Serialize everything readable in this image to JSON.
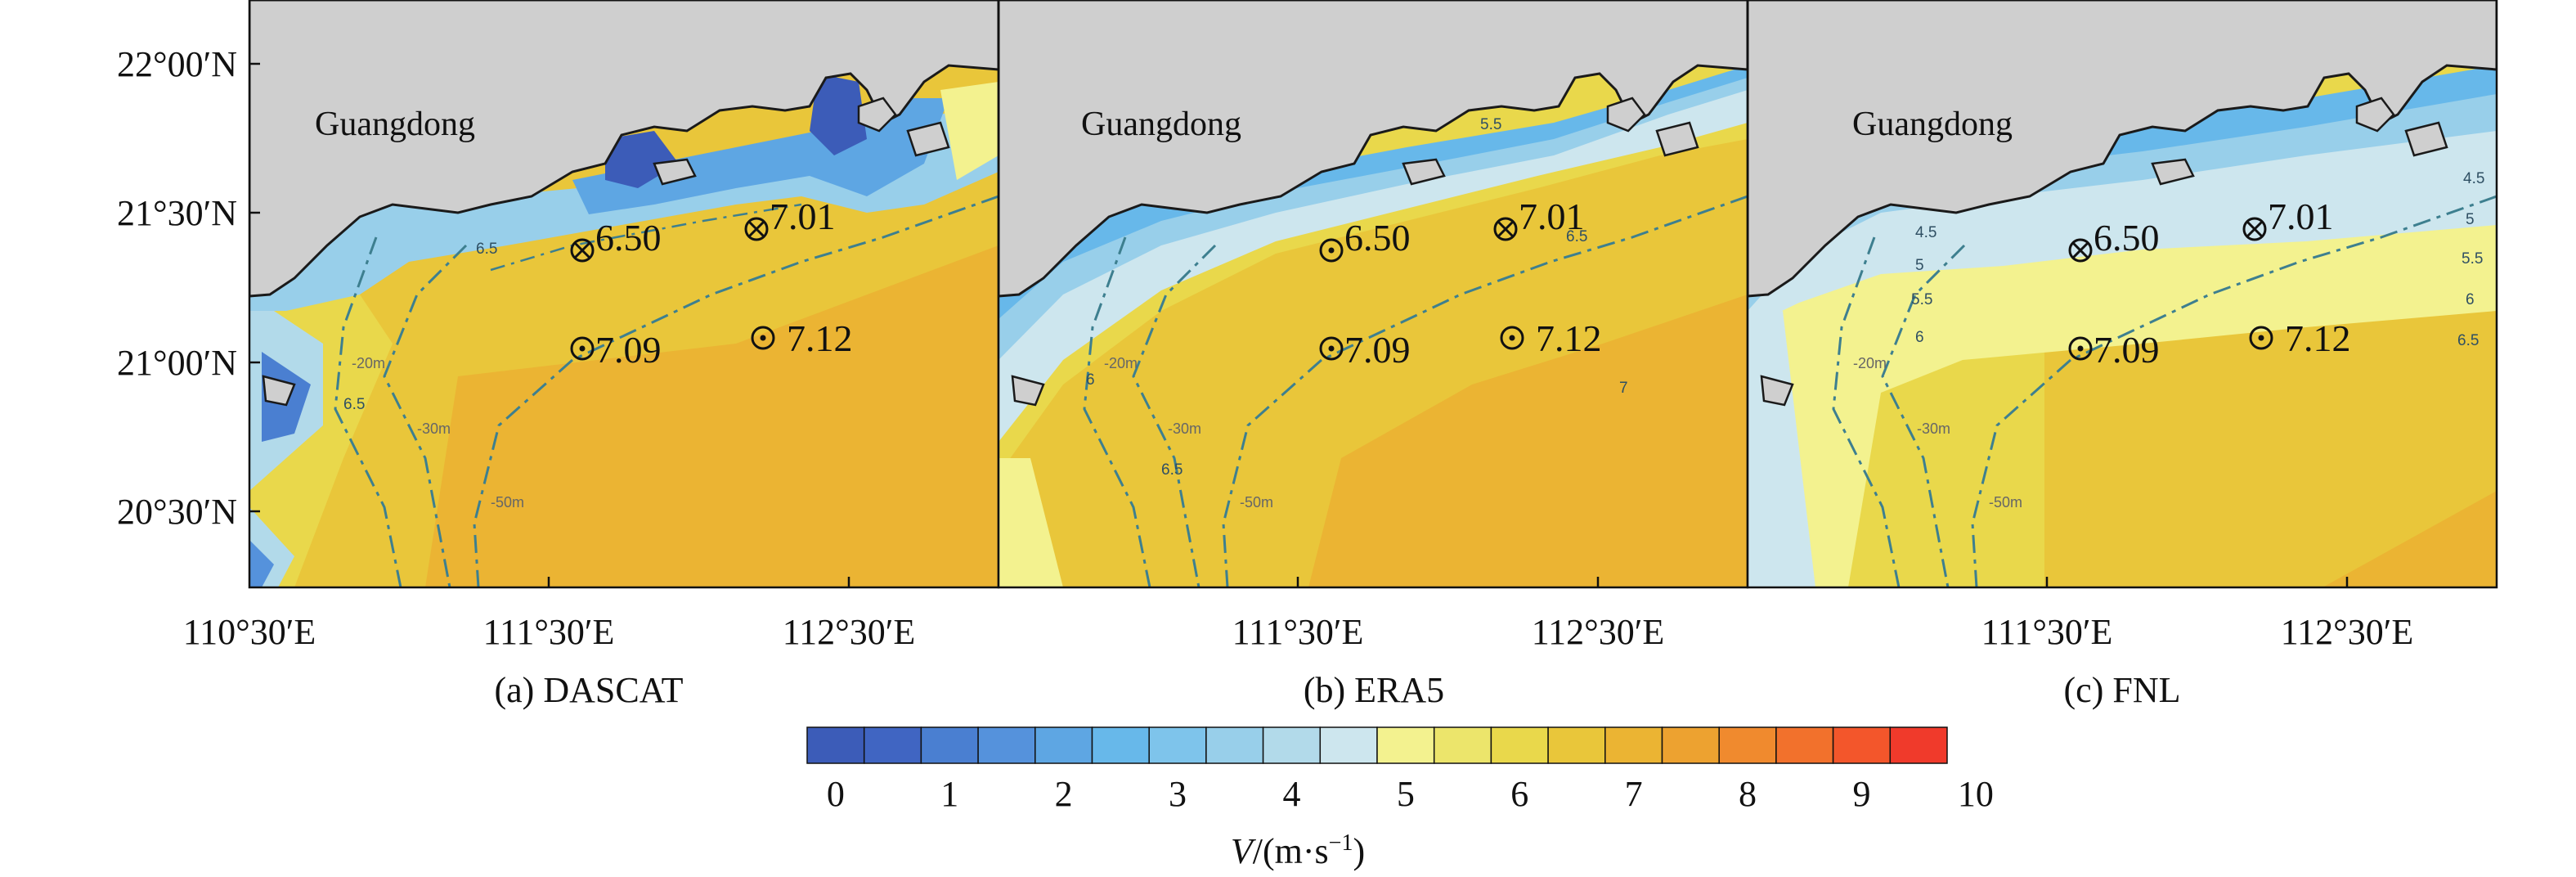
{
  "figure": {
    "lat_ticks": [
      "22°00′N",
      "21°30′N",
      "21°00′N",
      "20°30′N"
    ],
    "lon_ticks_a": [
      "110°30′E",
      "111°30′E",
      "112°30′E"
    ],
    "lon_ticks_bc": [
      "111°30′E",
      "112°30′E"
    ],
    "region_label": "Guangdong",
    "isobath_labels": [
      "-20m",
      "-30m",
      "-50m"
    ],
    "colors": {
      "land": "#cfcfcf",
      "coast": "#1a1a1a",
      "isobath": "#3d7f8f",
      "palette": [
        "#3c5cb8",
        "#4065c2",
        "#4a7fd1",
        "#5592dc",
        "#5ea6e3",
        "#67b8ea",
        "#7ec4eb",
        "#98cfea",
        "#b2daea",
        "#cde6ee",
        "#f3f28f",
        "#ece56b",
        "#e9d84b",
        "#e9c63a",
        "#ebb433",
        "#eda230",
        "#f08a2e",
        "#f2712c",
        "#f3562b",
        "#f03a2b",
        "#ee2f2f"
      ]
    }
  },
  "panels": [
    {
      "id": "a",
      "title": "(a) DASCAT",
      "stations": [
        {
          "marker": "cross",
          "value": "6.50"
        },
        {
          "marker": "cross",
          "value": "7.01"
        },
        {
          "marker": "dot",
          "value": "7.09"
        },
        {
          "marker": "dot",
          "value": "7.12"
        }
      ],
      "contour_labels": [
        "6.5",
        "6.5"
      ]
    },
    {
      "id": "b",
      "title": "(b) ERA5",
      "stations": [
        {
          "marker": "dot",
          "value": "6.50"
        },
        {
          "marker": "cross",
          "value": "7.01"
        },
        {
          "marker": "dot",
          "value": "7.09"
        },
        {
          "marker": "dot",
          "value": "7.12"
        }
      ],
      "contour_labels": [
        "6",
        "6.5",
        "7",
        "5.5",
        "6.5"
      ]
    },
    {
      "id": "c",
      "title": "(c) FNL",
      "stations": [
        {
          "marker": "cross",
          "value": "6.50"
        },
        {
          "marker": "cross",
          "value": "7.01"
        },
        {
          "marker": "dot",
          "value": "7.09"
        },
        {
          "marker": "dot",
          "value": "7.12"
        }
      ],
      "contour_labels": [
        "4.5",
        "5",
        "5.5",
        "6",
        "5.5",
        "6",
        "6.5",
        "5",
        "4.5"
      ]
    }
  ],
  "colorbar": {
    "min": 0,
    "max": 10,
    "step": 0.5,
    "tick_labels": [
      "0",
      "1",
      "2",
      "3",
      "4",
      "5",
      "6",
      "7",
      "8",
      "9",
      "10"
    ],
    "title_italic": "V",
    "title_rest": "/(m·s",
    "title_sup": "−1",
    "title_close": ")"
  }
}
